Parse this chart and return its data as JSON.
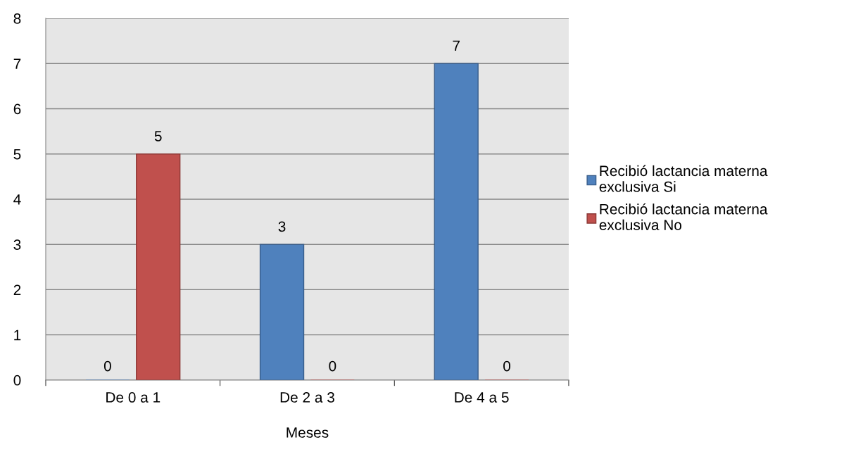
{
  "chart_data": {
    "type": "bar",
    "xlabel": "Meses",
    "categories": [
      "De 0 a 1",
      "De 2 a 3",
      "De 4 a 5"
    ],
    "series": [
      {
        "name": "Recibió lactancia materna\nexclusiva Si",
        "color": "#4f81bd",
        "values": [
          0,
          3,
          7
        ]
      },
      {
        "name": "Recibió lactancia materna\nexclusiva No",
        "color": "#c0504d",
        "values": [
          5,
          0,
          0
        ]
      }
    ],
    "ylim": [
      0,
      8
    ],
    "yticks": [
      0,
      1,
      2,
      3,
      4,
      5,
      6,
      7,
      8
    ],
    "grid": "y",
    "legend": "right",
    "data_labels": true
  }
}
